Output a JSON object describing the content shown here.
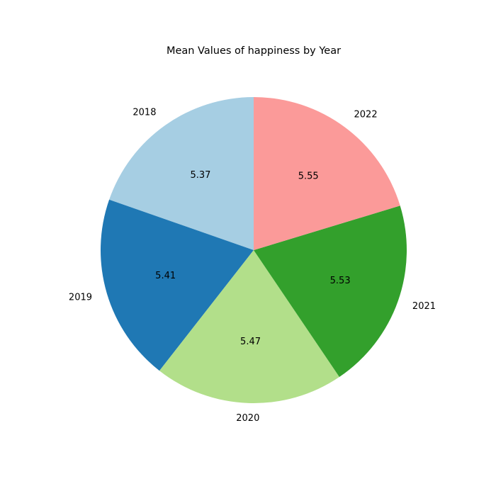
{
  "chart_data": {
    "type": "pie",
    "title": "Mean Values of happiness by Year",
    "categories": [
      "2018",
      "2019",
      "2020",
      "2021",
      "2022"
    ],
    "values": [
      5.37,
      5.41,
      5.47,
      5.53,
      5.55
    ],
    "value_labels": [
      "5.37",
      "5.41",
      "5.47",
      "5.53",
      "5.55"
    ],
    "colors": [
      "#a6cee3",
      "#1f78b4",
      "#b2df8a",
      "#33a02c",
      "#fb9a99"
    ],
    "start_angle_deg": 90,
    "direction": "counterclockwise",
    "legend": "none"
  }
}
